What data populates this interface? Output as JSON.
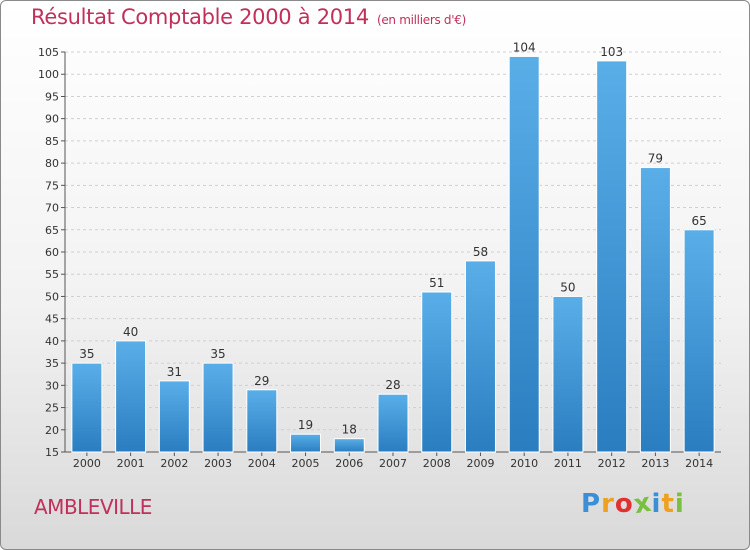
{
  "header": {
    "title": "Résultat Comptable 2000 à 2014",
    "subtitle": "(en milliers d'€)"
  },
  "footer": {
    "town": "AMBLEVILLE",
    "logo_letters": [
      "P",
      "r",
      "o",
      "x",
      "i",
      "t",
      "i"
    ],
    "logo_colors": [
      "#3a8fd6",
      "#f0a020",
      "#e23030",
      "#7ac040",
      "#3a8fd6",
      "#f0a020",
      "#7ac040"
    ]
  },
  "chart_data": {
    "type": "bar",
    "title": "Résultat Comptable 2000 à 2014",
    "subtitle": "(en milliers d'€)",
    "categories": [
      "2000",
      "2001",
      "2002",
      "2003",
      "2004",
      "2005",
      "2006",
      "2007",
      "2008",
      "2009",
      "2010",
      "2011",
      "2012",
      "2013",
      "2014"
    ],
    "values": [
      35,
      40,
      31,
      35,
      29,
      19,
      18,
      28,
      51,
      58,
      104,
      50,
      103,
      79,
      65
    ],
    "ylim": [
      15,
      105
    ],
    "yticks": [
      15,
      20,
      25,
      30,
      35,
      40,
      45,
      50,
      55,
      60,
      65,
      70,
      75,
      80,
      85,
      90,
      95,
      100,
      105
    ],
    "grid": true,
    "bar_color_top": "#5aaee8",
    "bar_color_bottom": "#2a7ec0"
  }
}
